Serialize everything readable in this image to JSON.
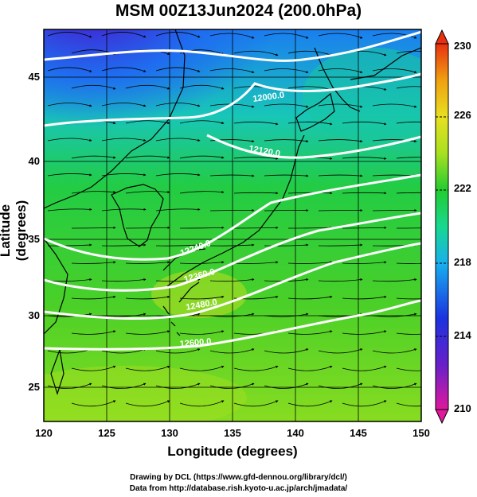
{
  "title": "MSM 00Z13Jun2024 (200.0hPa)",
  "xlabel": "Longitude (degrees)",
  "ylabel": "Latitude  (degrees)",
  "credit_line1": "Drawing by DCL (https://www.gfd-dennou.org/library/dcl/)",
  "credit_line2": "Data from http://database.rish.kyoto-u.ac.jp/arch/jmadata/",
  "colorbar": {
    "min": 210,
    "max": 230,
    "tick_labels": [
      "230",
      "226",
      "222",
      "218",
      "214",
      "210"
    ],
    "tick_values": [
      230,
      226,
      222,
      218,
      214,
      210
    ],
    "colors": [
      "#e0189c",
      "#6a20c8",
      "#1a33e0",
      "#18b0ee",
      "#18d890",
      "#22cc30",
      "#a8e020",
      "#e8e020",
      "#f0a010",
      "#e83010"
    ]
  },
  "map": {
    "lon_range": [
      120,
      150
    ],
    "lat_range": [
      23,
      48
    ],
    "lon_ticks": [
      "120",
      "125",
      "130",
      "135",
      "140",
      "145",
      "150"
    ],
    "lat_ticks": [
      "25",
      "30",
      "35",
      "40",
      "45"
    ],
    "lon_tick_values": [
      120,
      125,
      130,
      135,
      140,
      145,
      150
    ],
    "lat_tick_values": [
      25,
      30,
      35,
      40,
      45
    ],
    "contour_labels": [
      "12000.0",
      "12120.0",
      "12240.0",
      "12360.0",
      "12480.0",
      "12600.0"
    ],
    "field": "temperature (K) shading, geopotential height contours, wind streamlines"
  }
}
